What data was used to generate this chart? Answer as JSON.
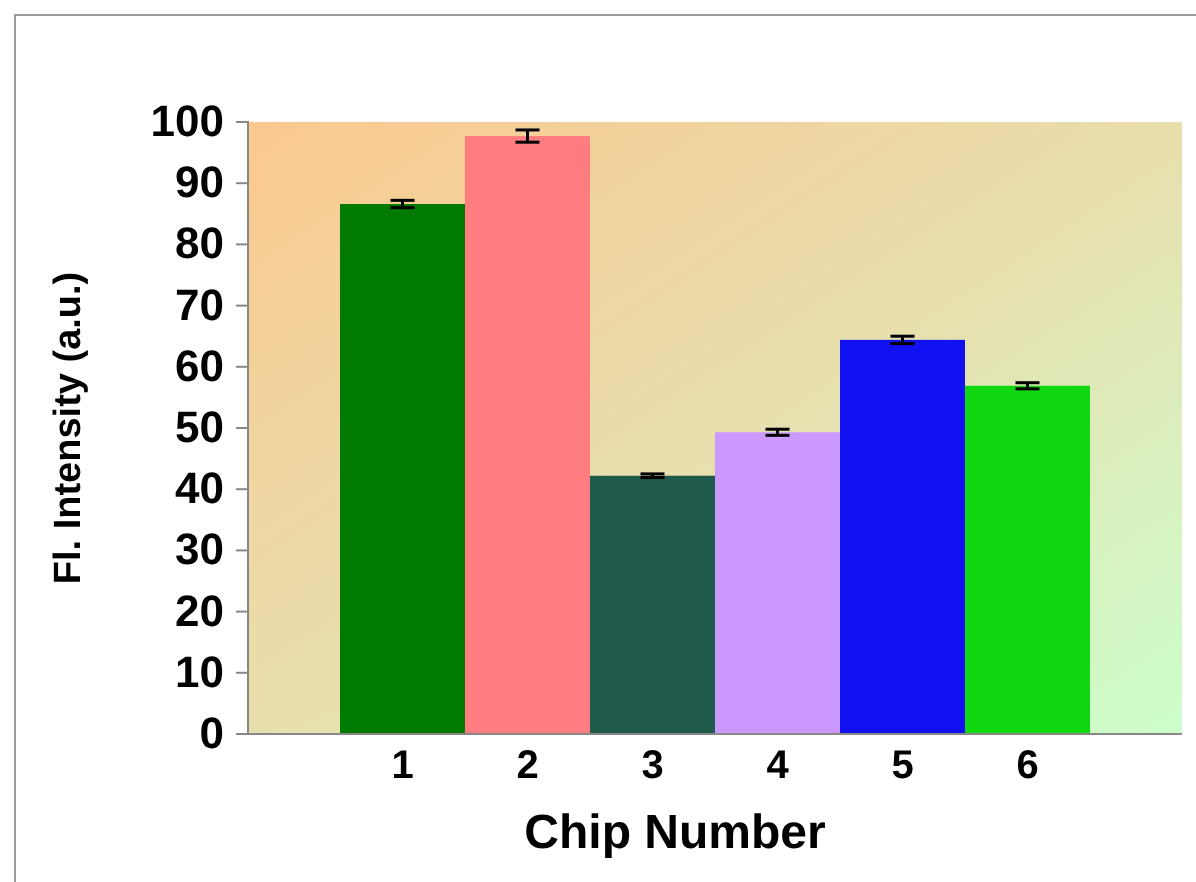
{
  "chart_data": {
    "type": "bar",
    "xlabel": "Chip Number",
    "ylabel": "Fl. Intensity (a.u.)",
    "categories": [
      "1",
      "2",
      "3",
      "4",
      "5",
      "6"
    ],
    "values": [
      86.6,
      97.7,
      42.2,
      49.3,
      64.4,
      56.9
    ],
    "errors": [
      0.6,
      1.0,
      0.3,
      0.5,
      0.6,
      0.5
    ],
    "colors": [
      "#007a00",
      "#ff7c80",
      "#1f5a4a",
      "#cc99ff",
      "#1010f0",
      "#10d810"
    ],
    "ylim": [
      0,
      100
    ],
    "yticks": [
      0,
      10,
      20,
      30,
      40,
      50,
      60,
      70,
      80,
      90,
      100
    ],
    "grid": false
  }
}
